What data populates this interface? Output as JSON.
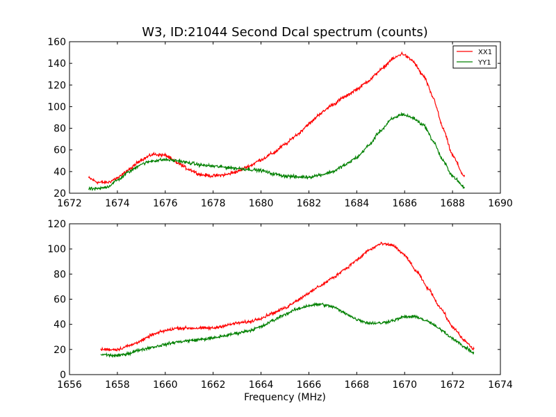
{
  "chart_data": [
    {
      "type": "line",
      "title": "W3, ID:21044 Second Dcal spectrum (counts)",
      "xlabel": "",
      "ylabel": "",
      "xlim": [
        1672,
        1690
      ],
      "ylim": [
        20,
        160
      ],
      "xticks": [
        1672,
        1674,
        1676,
        1678,
        1680,
        1682,
        1684,
        1686,
        1688,
        1690
      ],
      "yticks": [
        20,
        40,
        60,
        80,
        100,
        120,
        140,
        160
      ],
      "grid": false,
      "legend": "top-right",
      "noise": 1.5,
      "series": [
        {
          "name": "XX1",
          "color": "#ff0000",
          "points": [
            [
              1672.8,
              34
            ],
            [
              1673.2,
              30
            ],
            [
              1673.6,
              30
            ],
            [
              1674.0,
              34
            ],
            [
              1674.5,
              42
            ],
            [
              1675.0,
              51
            ],
            [
              1675.5,
              56
            ],
            [
              1676.0,
              55
            ],
            [
              1676.5,
              48
            ],
            [
              1677.0,
              42
            ],
            [
              1677.5,
              37
            ],
            [
              1678.0,
              36
            ],
            [
              1678.5,
              37
            ],
            [
              1679.0,
              40
            ],
            [
              1679.5,
              45
            ],
            [
              1680.0,
              51
            ],
            [
              1680.5,
              57
            ],
            [
              1681.0,
              65
            ],
            [
              1681.5,
              74
            ],
            [
              1682.0,
              84
            ],
            [
              1682.5,
              94
            ],
            [
              1683.0,
              102
            ],
            [
              1683.5,
              109
            ],
            [
              1684.0,
              116
            ],
            [
              1684.5,
              124
            ],
            [
              1685.0,
              134
            ],
            [
              1685.5,
              144
            ],
            [
              1685.9,
              149
            ],
            [
              1686.3,
              143
            ],
            [
              1686.8,
              128
            ],
            [
              1687.2,
              108
            ],
            [
              1687.6,
              80
            ],
            [
              1688.0,
              55
            ],
            [
              1688.5,
              35
            ]
          ]
        },
        {
          "name": "YY1",
          "color": "#008000",
          "points": [
            [
              1672.8,
              24
            ],
            [
              1673.2,
              24
            ],
            [
              1673.6,
              26
            ],
            [
              1674.0,
              32
            ],
            [
              1674.5,
              40
            ],
            [
              1675.0,
              47
            ],
            [
              1675.5,
              50
            ],
            [
              1676.0,
              51
            ],
            [
              1676.5,
              50
            ],
            [
              1677.0,
              48
            ],
            [
              1677.5,
              46
            ],
            [
              1678.0,
              45
            ],
            [
              1678.5,
              44
            ],
            [
              1679.0,
              43
            ],
            [
              1679.5,
              42
            ],
            [
              1680.0,
              41
            ],
            [
              1680.5,
              38
            ],
            [
              1681.0,
              36
            ],
            [
              1681.5,
              35
            ],
            [
              1682.0,
              35
            ],
            [
              1682.5,
              37
            ],
            [
              1683.0,
              40
            ],
            [
              1683.5,
              46
            ],
            [
              1684.0,
              53
            ],
            [
              1684.5,
              64
            ],
            [
              1685.0,
              78
            ],
            [
              1685.5,
              89
            ],
            [
              1685.9,
              93
            ],
            [
              1686.3,
              90
            ],
            [
              1686.8,
              83
            ],
            [
              1687.2,
              68
            ],
            [
              1687.6,
              50
            ],
            [
              1688.0,
              36
            ],
            [
              1688.5,
              25
            ]
          ]
        }
      ]
    },
    {
      "type": "line",
      "title": "",
      "xlabel": "Frequency (MHz)",
      "ylabel": "",
      "xlim": [
        1656,
        1674
      ],
      "ylim": [
        0,
        120
      ],
      "xticks": [
        1656,
        1658,
        1660,
        1662,
        1664,
        1666,
        1668,
        1670,
        1672,
        1674
      ],
      "yticks": [
        0,
        20,
        40,
        60,
        80,
        100,
        120
      ],
      "grid": false,
      "legend": "none",
      "noise": 1.2,
      "series": [
        {
          "color": "#ff0000",
          "points": [
            [
              1657.3,
              20
            ],
            [
              1658.0,
              20
            ],
            [
              1658.5,
              23
            ],
            [
              1659.0,
              27
            ],
            [
              1659.5,
              32
            ],
            [
              1660.0,
              35
            ],
            [
              1660.5,
              37
            ],
            [
              1661.0,
              37
            ],
            [
              1661.5,
              37
            ],
            [
              1662.0,
              37
            ],
            [
              1662.5,
              39
            ],
            [
              1663.0,
              41
            ],
            [
              1663.5,
              42
            ],
            [
              1664.0,
              45
            ],
            [
              1664.5,
              49
            ],
            [
              1665.0,
              53
            ],
            [
              1665.5,
              59
            ],
            [
              1666.0,
              65
            ],
            [
              1666.5,
              71
            ],
            [
              1667.0,
              77
            ],
            [
              1667.5,
              84
            ],
            [
              1668.0,
              91
            ],
            [
              1668.5,
              99
            ],
            [
              1669.0,
              104
            ],
            [
              1669.5,
              103
            ],
            [
              1670.0,
              95
            ],
            [
              1670.5,
              82
            ],
            [
              1671.0,
              68
            ],
            [
              1671.5,
              53
            ],
            [
              1672.0,
              38
            ],
            [
              1672.5,
              27
            ],
            [
              1672.9,
              20
            ]
          ]
        },
        {
          "color": "#008000",
          "points": [
            [
              1657.3,
              16
            ],
            [
              1658.0,
              15
            ],
            [
              1658.5,
              17
            ],
            [
              1659.0,
              20
            ],
            [
              1659.5,
              22
            ],
            [
              1660.0,
              24
            ],
            [
              1660.5,
              26
            ],
            [
              1661.0,
              27
            ],
            [
              1661.5,
              28
            ],
            [
              1662.0,
              29
            ],
            [
              1662.5,
              31
            ],
            [
              1663.0,
              33
            ],
            [
              1663.5,
              35
            ],
            [
              1664.0,
              38
            ],
            [
              1664.5,
              43
            ],
            [
              1665.0,
              48
            ],
            [
              1665.5,
              52
            ],
            [
              1666.0,
              55
            ],
            [
              1666.5,
              56
            ],
            [
              1667.0,
              54
            ],
            [
              1667.5,
              49
            ],
            [
              1668.0,
              44
            ],
            [
              1668.5,
              41
            ],
            [
              1669.0,
              41
            ],
            [
              1669.5,
              43
            ],
            [
              1670.0,
              46
            ],
            [
              1670.5,
              46
            ],
            [
              1671.0,
              42
            ],
            [
              1671.5,
              36
            ],
            [
              1672.0,
              29
            ],
            [
              1672.5,
              22
            ],
            [
              1672.9,
              17
            ]
          ]
        }
      ]
    }
  ]
}
